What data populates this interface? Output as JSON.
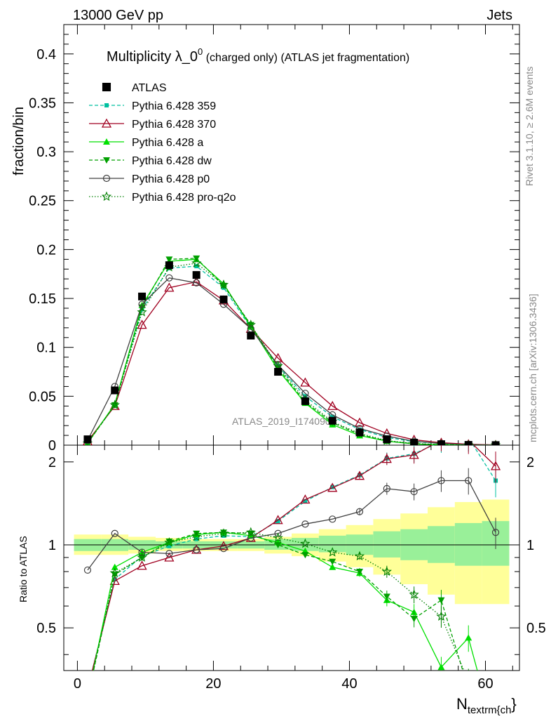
{
  "header": {
    "left": "13000 GeV pp",
    "right": "Jets"
  },
  "chart_data": {
    "type": "line",
    "title_main": "Multiplicity λ_0",
    "title_sup": "0",
    "title_suffix": " (charged only) (ATLAS jet fragmentation)",
    "ylabel": "fraction/bin",
    "ratio_ylabel": "Ratio to ATLAS",
    "xlabel_main": "N",
    "xlabel_sub": "textrm{ch",
    "xlabel_close": "}",
    "analysis_label": "ATLAS_2019_I1740909",
    "side_label_top": "Rivet 3.1.10, ≥ 2.6M events",
    "side_label_bottom": "mcplots.cern.ch [arXiv:1306.3436]",
    "xlim": [
      -2,
      65
    ],
    "ylim": [
      0,
      0.43
    ],
    "ratio_ylim": [
      0.35,
      2.3
    ],
    "x_ticks": [
      "0",
      "20",
      "40",
      "60"
    ],
    "y_ticks": [
      "0",
      "0.05",
      "0.1",
      "0.15",
      "0.2",
      "0.25",
      "0.3",
      "0.35",
      "0.4"
    ],
    "ratio_ticks": [
      "0.5",
      "1",
      "2"
    ],
    "x": [
      1.5,
      5.5,
      9.5,
      13.5,
      17.5,
      21.5,
      25.5,
      29.5,
      33.5,
      37.5,
      41.5,
      45.5,
      49.5,
      53.5,
      57.5,
      61.5
    ],
    "reference": {
      "name": "ATLAS",
      "values": [
        0.006,
        0.056,
        0.152,
        0.184,
        0.174,
        0.149,
        0.112,
        0.075,
        0.045,
        0.025,
        0.013,
        0.006,
        0.0025,
        0.001,
        0.0003,
        0.0001
      ],
      "band_inner": [
        [
          0.95,
          1.05
        ],
        [
          0.95,
          1.05
        ],
        [
          0.96,
          1.04
        ],
        [
          0.97,
          1.03
        ],
        [
          0.97,
          1.03
        ],
        [
          0.97,
          1.03
        ],
        [
          0.97,
          1.03
        ],
        [
          0.96,
          1.05
        ],
        [
          0.95,
          1.06
        ],
        [
          0.94,
          1.08
        ],
        [
          0.92,
          1.09
        ],
        [
          0.9,
          1.12
        ],
        [
          0.88,
          1.14
        ],
        [
          0.86,
          1.17
        ],
        [
          0.84,
          1.2
        ],
        [
          0.84,
          1.22
        ]
      ],
      "band_outer": [
        [
          0.92,
          1.09
        ],
        [
          0.92,
          1.09
        ],
        [
          0.93,
          1.07
        ],
        [
          0.95,
          1.06
        ],
        [
          0.95,
          1.05
        ],
        [
          0.95,
          1.05
        ],
        [
          0.95,
          1.05
        ],
        [
          0.93,
          1.07
        ],
        [
          0.91,
          1.1
        ],
        [
          0.87,
          1.14
        ],
        [
          0.83,
          1.18
        ],
        [
          0.78,
          1.24
        ],
        [
          0.72,
          1.3
        ],
        [
          0.66,
          1.37
        ],
        [
          0.61,
          1.43
        ],
        [
          0.61,
          1.46
        ]
      ]
    },
    "series": [
      {
        "name": "Pythia 6.428 359",
        "color": "#00c0a0",
        "dash": "5,3",
        "marker": "square-small",
        "values": [
          0.003,
          0.041,
          0.139,
          0.181,
          0.183,
          0.161,
          0.12,
          0.081,
          0.05,
          0.029,
          0.016,
          0.008,
          0.0036,
          0.0017,
          0.0007,
          0.0002
        ],
        "ratio": [
          0.3,
          0.75,
          0.91,
          0.99,
          1.05,
          1.08,
          1.07,
          1.22,
          1.44,
          1.62,
          1.79,
          2.06,
          2.14,
          2.37,
          2.45,
          1.71
        ]
      },
      {
        "name": "Pythia 6.428 370",
        "color": "#a00020",
        "dash": "",
        "marker": "triangle-open",
        "values": [
          0.004,
          0.04,
          0.123,
          0.161,
          0.167,
          0.148,
          0.119,
          0.089,
          0.064,
          0.04,
          0.023,
          0.012,
          0.0055,
          0.0025,
          0.0009,
          0.0002
        ],
        "ratio": [
          0.3,
          0.74,
          0.84,
          0.9,
          0.96,
          0.99,
          1.06,
          1.23,
          1.46,
          1.61,
          1.78,
          2.05,
          2.12,
          2.4,
          2.4,
          1.93
        ]
      },
      {
        "name": "Pythia 6.428 a",
        "color": "#00e000",
        "dash": "",
        "marker": "triangle-filled",
        "values": [
          0.002,
          0.042,
          0.143,
          0.188,
          0.19,
          0.165,
          0.121,
          0.077,
          0.043,
          0.021,
          0.0098,
          0.0041,
          0.0013,
          0.0003,
          0.0001,
          0.0
        ],
        "ratio": [
          0.28,
          0.83,
          0.94,
          1.02,
          1.09,
          1.11,
          1.08,
          1.02,
          0.95,
          0.83,
          0.79,
          0.63,
          0.57,
          0.36,
          0.46,
          0.2
        ]
      },
      {
        "name": "Pythia 6.428 dw",
        "color": "#00a000",
        "dash": "5,3",
        "marker": "triangle-down-filled",
        "values": [
          0.002,
          0.041,
          0.141,
          0.19,
          0.191,
          0.163,
          0.123,
          0.079,
          0.044,
          0.023,
          0.011,
          0.0042,
          0.0014,
          0.0006,
          0.0001,
          0.0
        ],
        "ratio": [
          0.28,
          0.78,
          0.9,
          1.03,
          1.1,
          1.11,
          1.1,
          1.0,
          0.92,
          0.87,
          0.8,
          0.65,
          0.54,
          0.63,
          0.3,
          0.2
        ]
      },
      {
        "name": "Pythia 6.428 p0",
        "color": "#404040",
        "dash": "",
        "marker": "circle-open",
        "values": [
          0.005,
          0.06,
          0.144,
          0.171,
          0.166,
          0.144,
          0.119,
          0.082,
          0.053,
          0.031,
          0.017,
          0.0093,
          0.004,
          0.0017,
          0.0005,
          0.0001
        ],
        "ratio": [
          0.81,
          1.1,
          0.94,
          0.93,
          0.96,
          0.97,
          1.06,
          1.1,
          1.19,
          1.24,
          1.32,
          1.6,
          1.56,
          1.71,
          1.71,
          1.11
        ]
      },
      {
        "name": "Pythia 6.428 pro-q2o",
        "color": "#008000",
        "dash": "1.5,2.5",
        "marker": "star-open",
        "values": [
          0.002,
          0.041,
          0.136,
          0.182,
          0.186,
          0.164,
          0.123,
          0.081,
          0.046,
          0.024,
          0.012,
          0.0047,
          0.0017,
          0.0006,
          0.0001,
          0.0
        ],
        "ratio": [
          0.28,
          0.79,
          0.9,
          1.02,
          1.07,
          1.1,
          1.11,
          1.06,
          1.01,
          0.94,
          0.91,
          0.8,
          0.66,
          0.55,
          0.32,
          0.2
        ]
      }
    ],
    "grid": false,
    "legend_position": "top-left"
  }
}
